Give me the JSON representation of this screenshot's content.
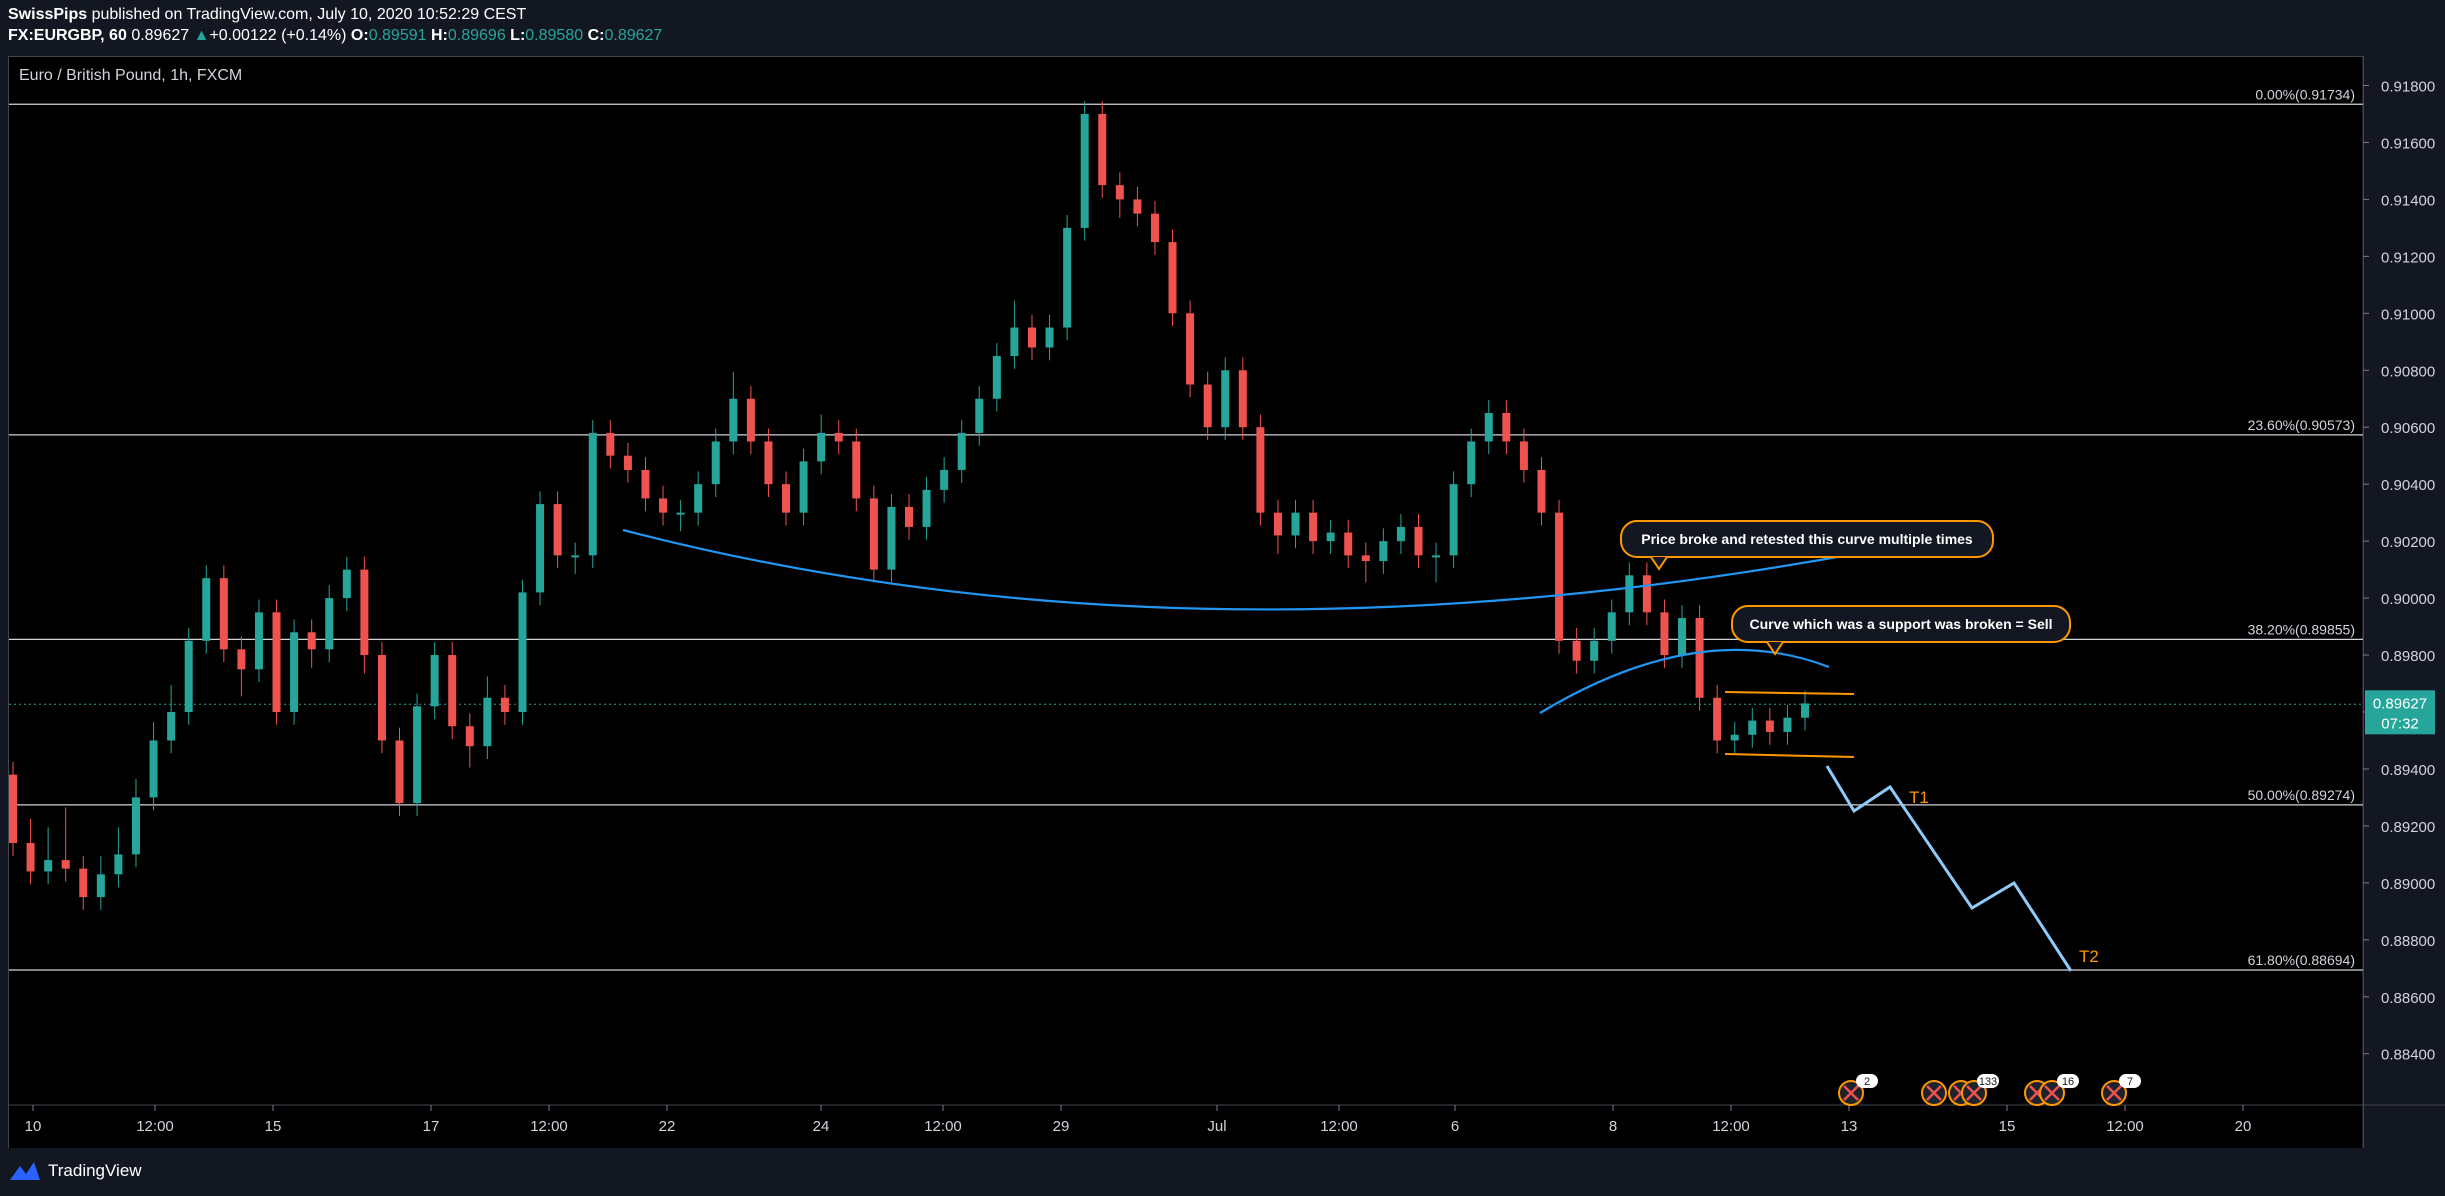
{
  "header": {
    "author": "SwissPips",
    "published": " published on TradingView.com, July 10, 2020 10:52:29 CEST",
    "symbol": "FX:EURGBP, 60",
    "last": "0.89627",
    "change": "+0.00122 (+0.14%)",
    "o_label": "O:",
    "o": "0.89591",
    "h_label": "H:",
    "h": "0.89696",
    "l_label": "L:",
    "l": "0.89580",
    "c_label": "C:",
    "c": "0.89627"
  },
  "footer": {
    "brand": "TradingView"
  },
  "colors": {
    "up": "#26a69a",
    "down": "#ef5350",
    "curve": "#2196f3",
    "projection": "#90caf9",
    "orange": "#ff9800",
    "fib": "#d1d4dc",
    "price_badge": "#26a69a"
  },
  "chart_data": {
    "type": "candlestick",
    "title": "Euro / British Pound, 1h, FXCM",
    "ylim": [
      0.8822,
      0.919
    ],
    "y_ticks": [
      "0.91800",
      "0.91600",
      "0.91400",
      "0.91200",
      "0.91000",
      "0.90800",
      "0.90600",
      "0.90400",
      "0.90200",
      "0.90000",
      "0.89800",
      "0.89600",
      "0.89400",
      "0.89200",
      "0.89000",
      "0.88800",
      "0.88600",
      "0.88400"
    ],
    "x_ticks": [
      "10",
      "12:00",
      "15",
      "17",
      "12:00",
      "22",
      "24",
      "12:00",
      "29",
      "Jul",
      "12:00",
      "6",
      "8",
      "12:00",
      "13",
      "15",
      "12:00",
      "20"
    ],
    "fib_levels": [
      {
        "label": "0.00%(0.91734)",
        "value": 0.91734
      },
      {
        "label": "23.60%(0.90573)",
        "value": 0.90573
      },
      {
        "label": "38.20%(0.89855)",
        "value": 0.89855
      },
      {
        "label": "50.00%(0.89274)",
        "value": 0.89274
      },
      {
        "label": "61.80%(0.88694)",
        "value": 0.88694
      }
    ],
    "current_price": {
      "value": 0.89627,
      "label": "0.89627",
      "countdown": "07:32"
    },
    "annotations": [
      {
        "text": "Price broke and retested this curve multiple times"
      },
      {
        "text": "Curve which was a support was broken = Sell"
      }
    ],
    "targets": [
      {
        "label": "T1",
        "value": 0.8934
      },
      {
        "label": "T2",
        "value": 0.8872
      }
    ],
    "event_badges": [
      "2",
      "133",
      "16",
      "7"
    ],
    "series": [
      {
        "name": "EURGBP",
        "points": [
          [
            0.8938,
            0.8914
          ],
          [
            0.8918,
            0.8904
          ],
          [
            0.8915,
            0.8908
          ],
          [
            0.8922,
            0.8905
          ],
          [
            0.8902,
            0.8895
          ],
          [
            0.8905,
            0.8903
          ],
          [
            0.8915,
            0.891
          ],
          [
            0.8932,
            0.893
          ],
          [
            0.8952,
            0.895
          ],
          [
            0.8965,
            0.896
          ],
          [
            0.898,
            0.8985
          ],
          [
            0.9003,
            0.9007
          ],
          [
            0.8985,
            0.8982
          ],
          [
            0.897,
            0.8975
          ],
          [
            0.899,
            0.8995
          ],
          [
            0.8962,
            0.896
          ],
          [
            0.8985,
            0.8988
          ],
          [
            0.898,
            0.8982
          ],
          [
            0.8995,
            0.9
          ],
          [
            0.9005,
            0.901
          ],
          [
            0.8978,
            0.898
          ],
          [
            0.8955,
            0.895
          ],
          [
            0.8932,
            0.8928
          ],
          [
            0.896,
            0.8962
          ],
          [
            0.8978,
            0.898
          ],
          [
            0.8958,
            0.8955
          ],
          [
            0.8945,
            0.8948
          ],
          [
            0.8968,
            0.8965
          ],
          [
            0.8962,
            0.896
          ],
          [
            0.8998,
            0.9002
          ],
          [
            0.903,
            0.9033
          ],
          [
            0.902,
            0.9015
          ],
          [
            0.9013,
            0.9015
          ],
          [
            0.905,
            0.9058
          ],
          [
            0.9055,
            0.905
          ],
          [
            0.9048,
            0.9045
          ],
          [
            0.904,
            0.9035
          ],
          [
            0.9032,
            0.903
          ],
          [
            0.9028,
            0.903
          ],
          [
            0.9038,
            0.904
          ],
          [
            0.905,
            0.9055
          ],
          [
            0.9075,
            0.907
          ],
          [
            0.906,
            0.9055
          ],
          [
            0.9045,
            0.904
          ],
          [
            0.9035,
            0.903
          ],
          [
            0.9045,
            0.9048
          ],
          [
            0.906,
            0.9058
          ],
          [
            0.9055,
            0.9055
          ],
          [
            0.904,
            0.9035
          ],
          [
            0.9015,
            0.901
          ],
          [
            0.903,
            0.9032
          ],
          [
            0.9028,
            0.9025
          ],
          [
            0.9035,
            0.9038
          ],
          [
            0.904,
            0.9045
          ],
          [
            0.905,
            0.9058
          ],
          [
            0.9065,
            0.907
          ],
          [
            0.908,
            0.9085
          ],
          [
            0.91,
            0.9095
          ],
          [
            0.9095,
            0.9088
          ],
          [
            0.909,
            0.9095
          ],
          [
            0.912,
            0.913
          ],
          [
            0.9165,
            0.917
          ],
          [
            0.915,
            0.9145
          ],
          [
            0.9138,
            0.914
          ],
          [
            0.914,
            0.9135
          ],
          [
            0.9132,
            0.9125
          ],
          [
            0.911,
            0.91
          ],
          [
            0.908,
            0.9075
          ],
          [
            0.9065,
            0.906
          ],
          [
            0.9075,
            0.908
          ],
          [
            0.9065,
            0.906
          ],
          [
            0.904,
            0.903
          ],
          [
            0.902,
            0.9022
          ],
          [
            0.9028,
            0.903
          ],
          [
            0.9025,
            0.902
          ],
          [
            0.902,
            0.9023
          ],
          [
            0.9018,
            0.9015
          ],
          [
            0.901,
            0.9013
          ],
          [
            0.9015,
            0.902
          ],
          [
            0.9022,
            0.9025
          ],
          [
            0.9018,
            0.9015
          ],
          [
            0.901,
            0.9015
          ],
          [
            0.903,
            0.904
          ],
          [
            0.9048,
            0.9055
          ],
          [
            0.9062,
            0.9065
          ],
          [
            0.9058,
            0.9055
          ],
          [
            0.905,
            0.9045
          ],
          [
            0.9038,
            0.903
          ],
          [
            0.9,
            0.8985
          ],
          [
            0.898,
            0.8978
          ],
          [
            0.8982,
            0.8985
          ],
          [
            0.899,
            0.8995
          ],
          [
            0.9005,
            0.9008
          ],
          [
            0.9,
            0.8995
          ],
          [
            0.8985,
            0.898
          ],
          [
            0.899,
            0.8993
          ],
          [
            0.8975,
            0.8965
          ],
          [
            0.8955,
            0.895
          ],
          [
            0.895,
            0.8952
          ],
          [
            0.8955,
            0.8957
          ],
          [
            0.8955,
            0.8953
          ],
          [
            0.8955,
            0.8958
          ],
          [
            0.8962,
            0.8963
          ]
        ]
      }
    ]
  }
}
